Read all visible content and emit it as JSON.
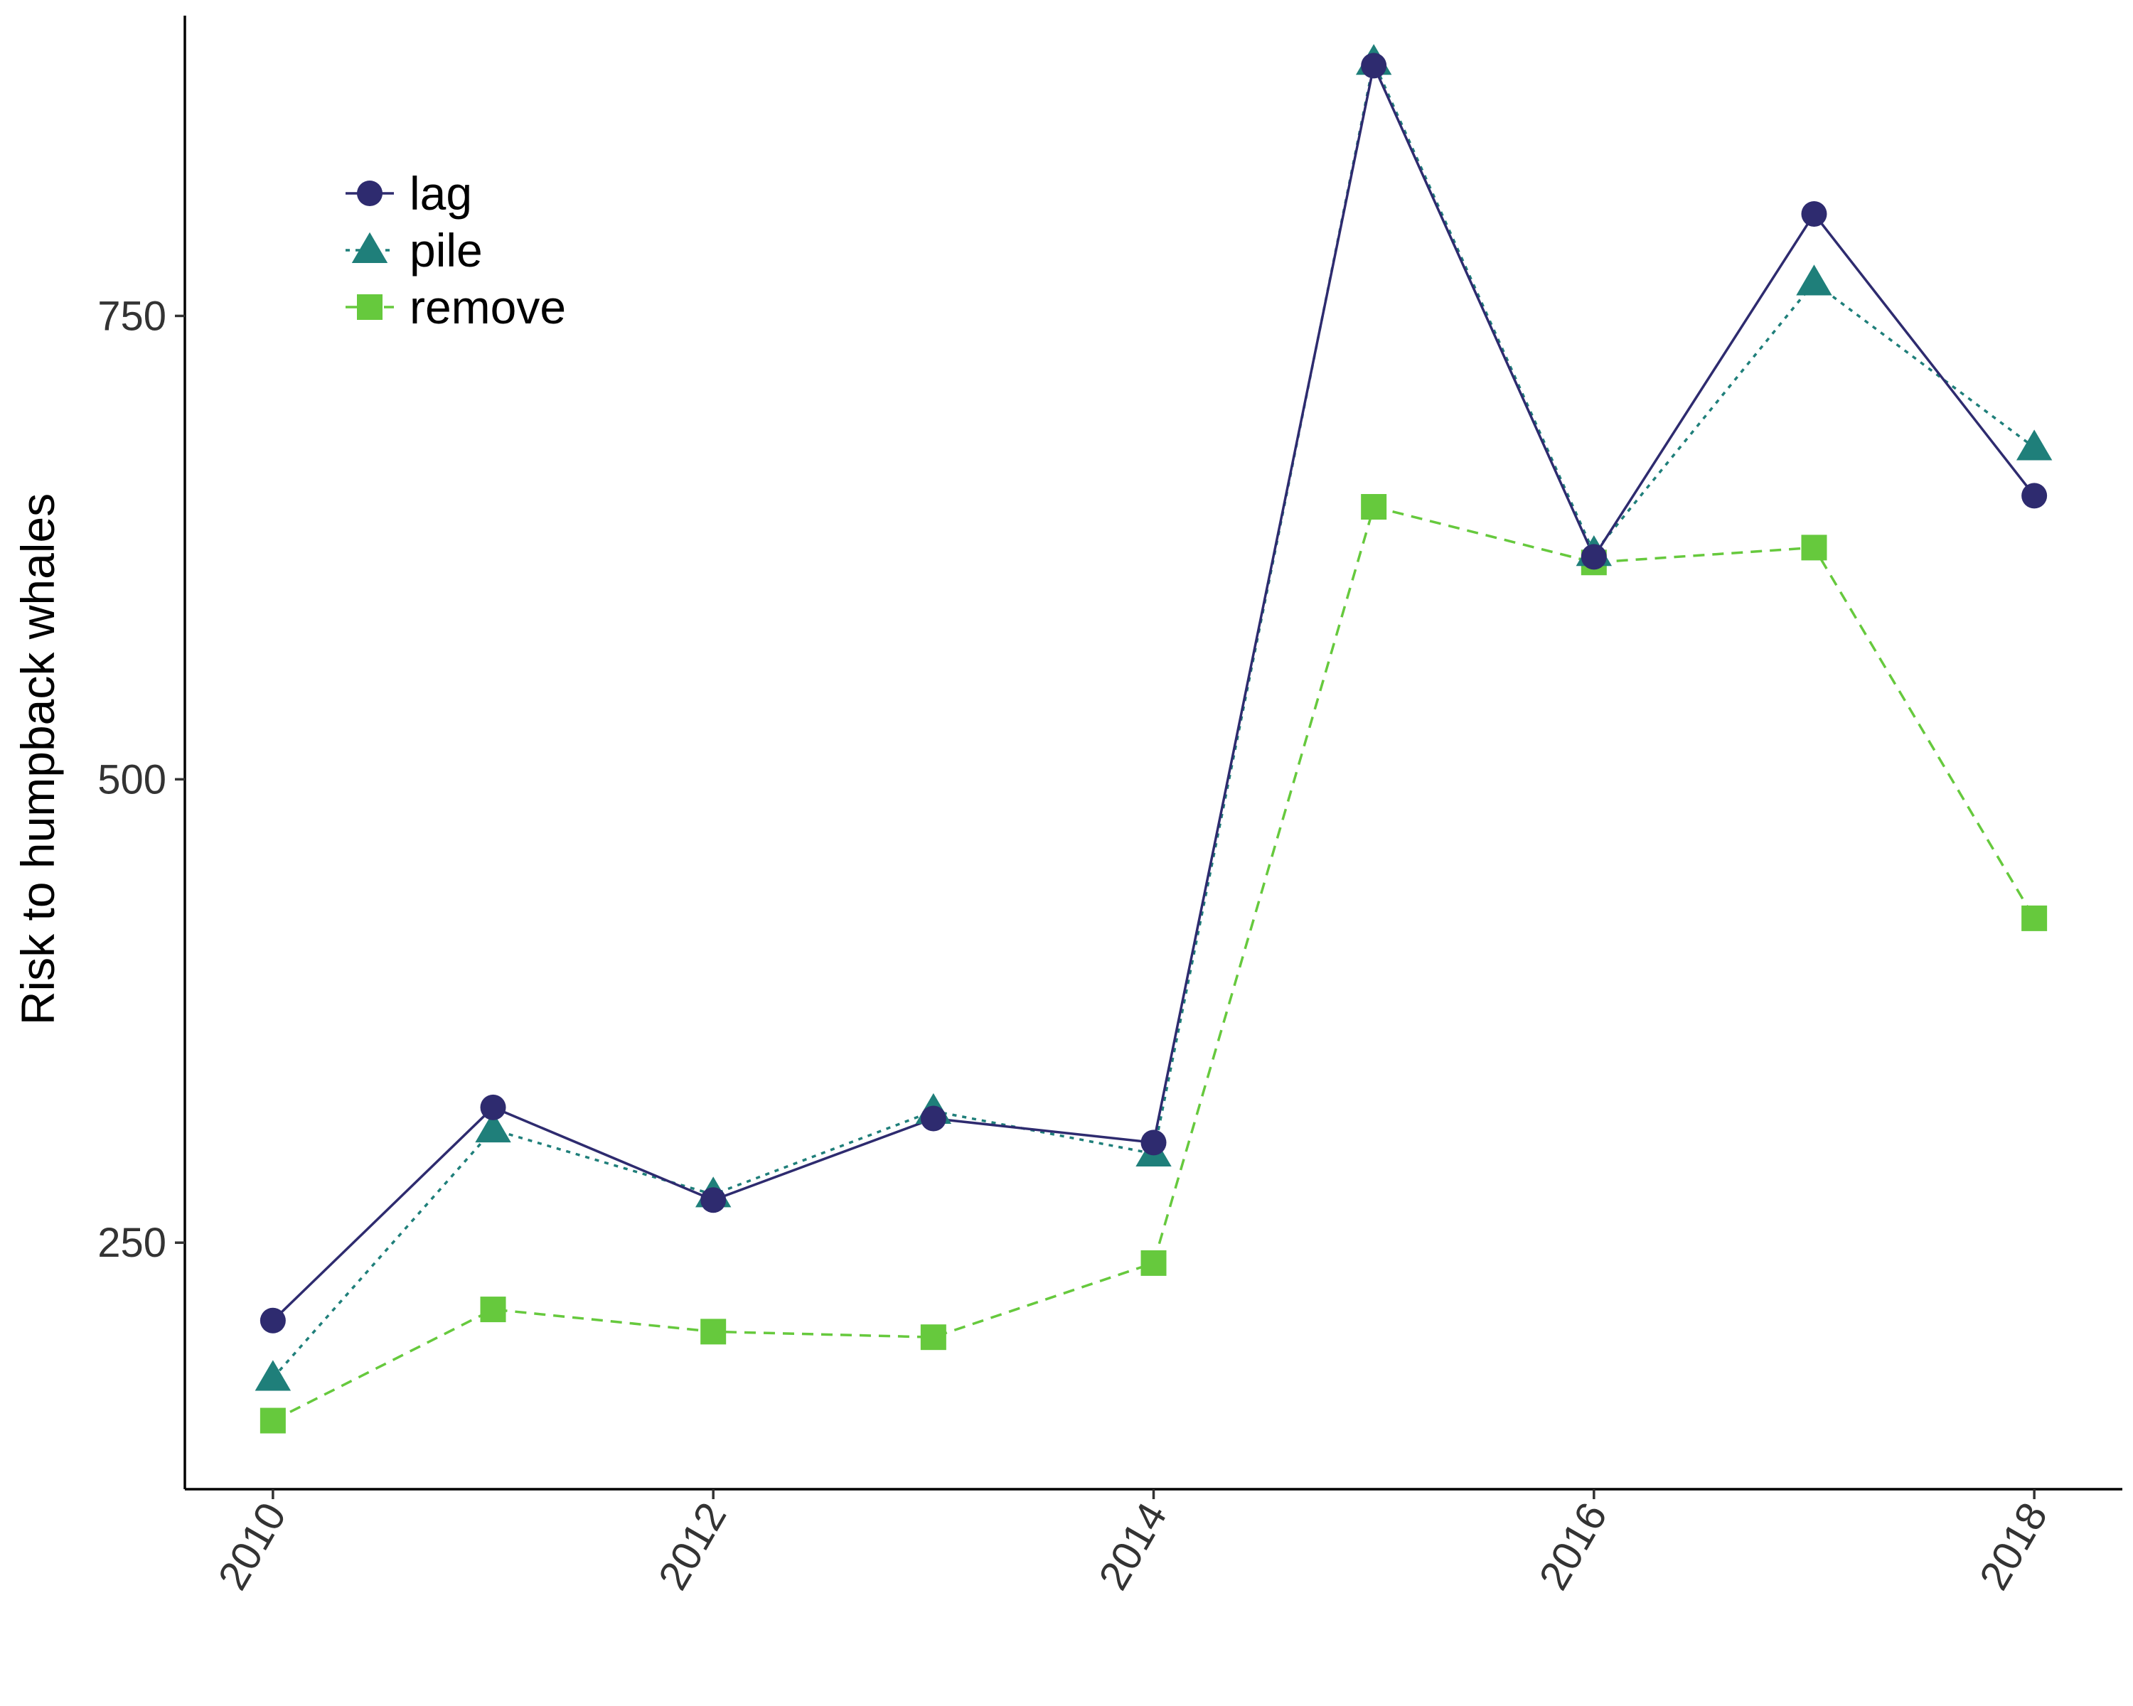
{
  "chart_data": {
    "type": "line",
    "ylabel": "Risk to humpback whales",
    "xlabel": "",
    "x": [
      2010,
      2011,
      2012,
      2013,
      2014,
      2015,
      2016,
      2017,
      2018
    ],
    "xlim": [
      2009.6,
      2018.4
    ],
    "ylim": [
      117,
      912
    ],
    "xticks": [
      2010,
      2012,
      2014,
      2016,
      2018
    ],
    "yticks": [
      250,
      500,
      750
    ],
    "grid": false,
    "legend_position": "top-left",
    "series": [
      {
        "name": "lag",
        "marker": "circle",
        "line": "solid",
        "color": "#2e2b6f",
        "values": [
          208,
          323,
          273,
          317,
          304,
          885,
          620,
          805,
          653
        ]
      },
      {
        "name": "pile",
        "marker": "triangle",
        "line": "dotted",
        "color": "#1f7f7a",
        "values": [
          177,
          311,
          276,
          321,
          298,
          887,
          622,
          768,
          679
        ]
      },
      {
        "name": "remove",
        "marker": "square",
        "line": "dashed",
        "color": "#66c93d",
        "values": [
          154,
          214,
          202,
          199,
          239,
          647,
          617,
          625,
          425
        ]
      }
    ]
  }
}
